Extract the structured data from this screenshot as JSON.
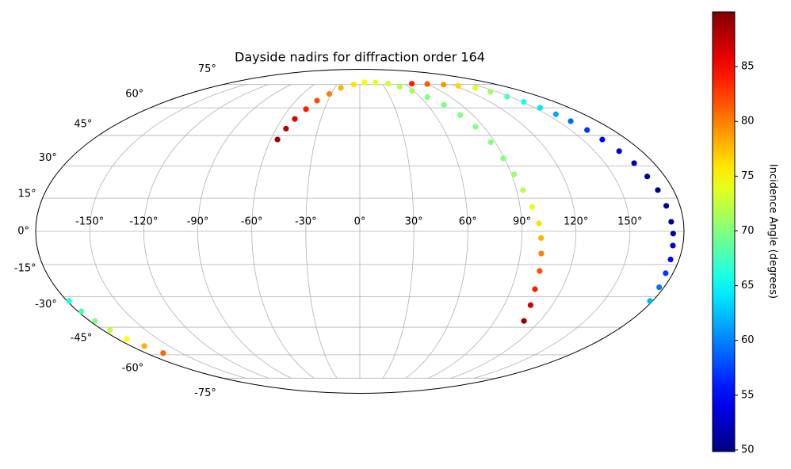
{
  "chart_data": {
    "type": "scatter",
    "projection": "mollweide",
    "title": "Dayside nadirs for diffraction order 164",
    "colorbar_label": "Incidence Angle (degrees)",
    "colormap": "jet",
    "clim": [
      49.85,
      90.0
    ],
    "colorbar_ticks": [
      50,
      55,
      60,
      65,
      70,
      75,
      80,
      85
    ],
    "xlim": [
      -180,
      180
    ],
    "ylim": [
      -90,
      90
    ],
    "grid": true,
    "xticks": [
      {
        "value": -150,
        "label": "-150°"
      },
      {
        "value": -120,
        "label": "-120°"
      },
      {
        "value": -90,
        "label": "-90°"
      },
      {
        "value": -60,
        "label": "-60°"
      },
      {
        "value": -30,
        "label": "-30°"
      },
      {
        "value": 0,
        "label": "0°"
      },
      {
        "value": 30,
        "label": "30°"
      },
      {
        "value": 60,
        "label": "60°"
      },
      {
        "value": 90,
        "label": "90°"
      },
      {
        "value": 120,
        "label": "120°"
      },
      {
        "value": 150,
        "label": "150°"
      }
    ],
    "yticks": [
      {
        "value": -75,
        "label": "-75°"
      },
      {
        "value": -60,
        "label": "-60°"
      },
      {
        "value": -45,
        "label": "-45°"
      },
      {
        "value": -30,
        "label": "-30°"
      },
      {
        "value": -15,
        "label": "-15°"
      },
      {
        "value": 0,
        "label": "0°"
      },
      {
        "value": 15,
        "label": "15°"
      },
      {
        "value": 30,
        "label": "30°"
      },
      {
        "value": 45,
        "label": "45°"
      },
      {
        "value": 60,
        "label": "60°"
      },
      {
        "value": 75,
        "label": "75°"
      }
    ],
    "x": [
      -55.5,
      -53,
      -50.1,
      -45.5,
      -40.2,
      -32,
      -22.7,
      -8,
      6.7,
      22,
      38.2,
      49,
      58.1,
      67,
      74.8,
      80,
      84.1,
      87,
      89.2,
      91.5,
      93.7,
      96.8,
      99.6,
      100.7,
      101.7,
      103,
      104.1,
      106.5,
      109.4,
      70,
      90,
      109.5,
      124,
      137.8,
      143,
      147.2,
      151.3,
      154.7,
      157.4,
      159.7,
      161.7,
      163.4,
      165.7,
      167.9,
      169.6,
      171.1,
      172.3,
      173.2,
      174,
      174.5,
      175.2,
      175.8,
      177.1,
      178.4,
      -178.8,
      -177.7,
      -176.5,
      -175,
      -173.2,
      -169.5,
      -165.6
    ],
    "y": [
      42.9,
      48.5,
      53.7,
      59.2,
      64.3,
      68.5,
      72.6,
      75,
      76.7,
      76.5,
      75.6,
      73.3,
      70.5,
      66.5,
      61.8,
      55.8,
      49.5,
      41.5,
      33.6,
      26,
      18.7,
      11,
      3.6,
      -3,
      -10,
      -18,
      -26.4,
      -34,
      -41.8,
      75.6,
      75.4,
      74.9,
      74,
      72.6,
      70,
      66.8,
      63.5,
      60,
      56.3,
      52.5,
      47.8,
      42.9,
      37.1,
      31.3,
      25,
      18.7,
      11.5,
      4.3,
      -1,
      -6.4,
      -12.7,
      -19,
      -25.5,
      -32,
      -32,
      -37,
      -41.8,
      -46.5,
      -51.2,
      -55,
      -59
    ],
    "values": [
      89,
      87.5,
      86,
      84,
      82,
      80,
      78,
      76,
      75,
      74,
      73,
      72,
      71,
      70,
      70,
      70,
      70,
      70,
      70,
      71,
      72,
      74,
      76,
      78,
      80,
      82,
      84,
      86.5,
      89,
      84,
      81.5,
      79,
      76.5,
      74,
      71,
      68,
      66,
      64,
      61.5,
      59,
      57,
      55,
      53.5,
      52,
      51,
      50,
      50,
      50,
      51.5,
      53,
      55,
      57,
      59.5,
      62,
      66,
      68,
      70,
      72.5,
      75,
      78,
      81
    ]
  }
}
